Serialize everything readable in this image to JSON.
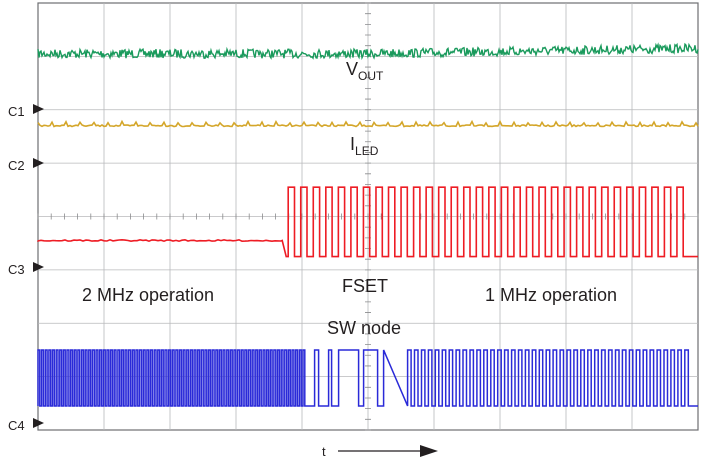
{
  "chart_data": {
    "type": "line",
    "title": "",
    "grid": true,
    "x_axis": {
      "label": "t",
      "divisions": 10
    },
    "y_axis": {
      "divisions": 8
    },
    "channel_markers": [
      "C1",
      "C2",
      "C3",
      "C4"
    ],
    "series": [
      {
        "name": "VOUT",
        "label_main": "V",
        "label_sub": "OUT",
        "color": "#1a9a5c",
        "shape": "dc ramp with noise",
        "level_start_div": 0.95,
        "level_end_div": 0.85
      },
      {
        "name": "ILED",
        "label_main": "I",
        "label_sub": "LED",
        "color": "#d4a62a",
        "shape": "flat with small spikes",
        "level_div": 2.3
      },
      {
        "name": "FSET",
        "label_main": "FSET",
        "label_sub": "",
        "color": "#ee1c24",
        "shape": "low then square wave",
        "low_level_div": 4.45,
        "step_at_div": 3.7,
        "high_level_div": 3.45,
        "square_low_div": 4.75,
        "period_div": 0.19
      },
      {
        "name": "SW node",
        "label_main": "SW node",
        "label_sub": "",
        "color": "#2a2ad8",
        "shape": "switching square wave",
        "high_level_div": 6.5,
        "low_level_div": 7.55,
        "fast_period_div": 0.055,
        "transition_start_div": 4.1,
        "transition_end_div": 5.6,
        "slow_period_div": 0.105
      }
    ],
    "annotations": [
      {
        "text": "2 MHz operation",
        "region": "left"
      },
      {
        "text": "1 MHz operation",
        "region": "right"
      }
    ]
  }
}
